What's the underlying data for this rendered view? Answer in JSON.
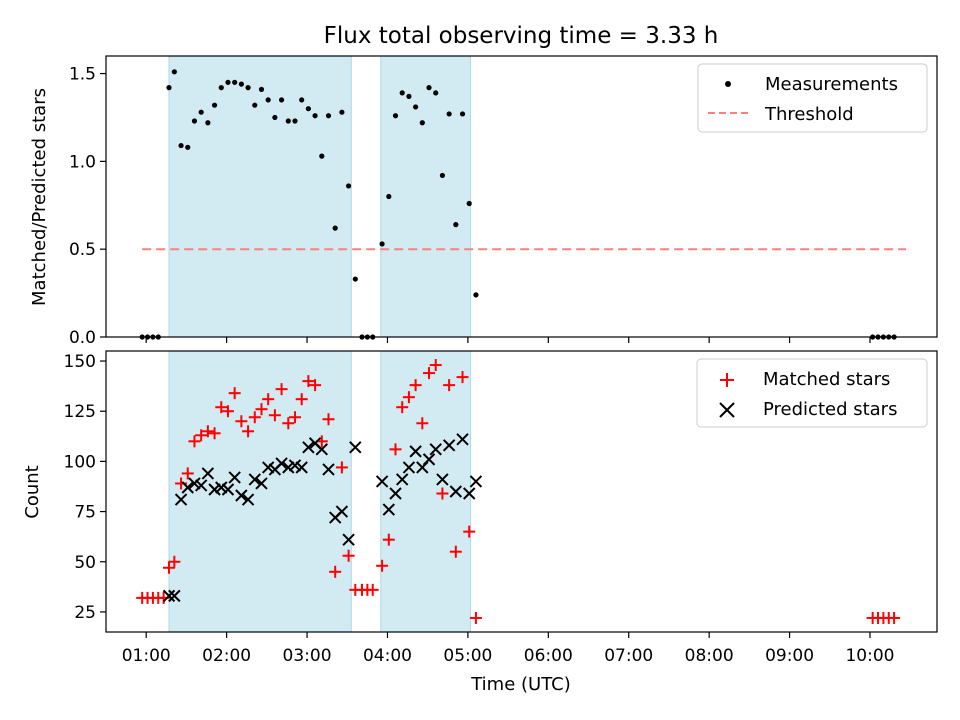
{
  "title": "Flux total observing time = 3.33 h",
  "colors": {
    "shade": "#add8e6",
    "measure": "#000000",
    "threshold": "#ff7f7f",
    "matched": "#ff0000",
    "predicted": "#000000"
  },
  "chart_data": [
    {
      "type": "scatter",
      "panel": "top",
      "ylabel": "Matched/Predicted stars",
      "ylim": [
        0,
        1.6
      ],
      "yticks": [
        0.0,
        0.5,
        1.0,
        1.5
      ],
      "shaded_intervals": [
        [
          "01:17",
          "03:33"
        ],
        [
          "03:55",
          "05:02"
        ]
      ],
      "threshold": {
        "name": "Threshold",
        "y": 0.5,
        "x_range": [
          "00:57",
          "10:27"
        ]
      },
      "legend": [
        "Measurements",
        "Threshold"
      ],
      "series": [
        {
          "name": "Measurements",
          "points": [
            [
              "00:57",
              0
            ],
            [
              "01:01",
              0
            ],
            [
              "01:05",
              0
            ],
            [
              "01:09",
              0
            ],
            [
              "01:17",
              1.42
            ],
            [
              "01:21",
              1.51
            ],
            [
              "01:26",
              1.09
            ],
            [
              "01:31",
              1.08
            ],
            [
              "01:36",
              1.23
            ],
            [
              "01:41",
              1.28
            ],
            [
              "01:46",
              1.22
            ],
            [
              "01:51",
              1.32
            ],
            [
              "01:56",
              1.42
            ],
            [
              "02:01",
              1.45
            ],
            [
              "02:06",
              1.45
            ],
            [
              "02:11",
              1.44
            ],
            [
              "02:16",
              1.42
            ],
            [
              "02:21",
              1.32
            ],
            [
              "02:26",
              1.41
            ],
            [
              "02:31",
              1.35
            ],
            [
              "02:36",
              1.25
            ],
            [
              "02:41",
              1.35
            ],
            [
              "02:46",
              1.23
            ],
            [
              "02:51",
              1.23
            ],
            [
              "02:56",
              1.35
            ],
            [
              "03:01",
              1.3
            ],
            [
              "03:06",
              1.26
            ],
            [
              "03:11",
              1.03
            ],
            [
              "03:16",
              1.26
            ],
            [
              "03:21",
              0.62
            ],
            [
              "03:26",
              1.28
            ],
            [
              "03:31",
              0.86
            ],
            [
              "03:36",
              0.33
            ],
            [
              "03:41",
              0
            ],
            [
              "03:45",
              0
            ],
            [
              "03:49",
              0
            ],
            [
              "03:56",
              0.53
            ],
            [
              "04:01",
              0.8
            ],
            [
              "04:06",
              1.26
            ],
            [
              "04:11",
              1.39
            ],
            [
              "04:16",
              1.37
            ],
            [
              "04:21",
              1.31
            ],
            [
              "04:26",
              1.22
            ],
            [
              "04:31",
              1.42
            ],
            [
              "04:36",
              1.39
            ],
            [
              "04:41",
              0.92
            ],
            [
              "04:46",
              1.27
            ],
            [
              "04:51",
              0.64
            ],
            [
              "04:56",
              1.27
            ],
            [
              "05:01",
              0.76
            ],
            [
              "05:06",
              0.24
            ],
            [
              "10:02",
              0
            ],
            [
              "10:06",
              0
            ],
            [
              "10:10",
              0
            ],
            [
              "10:14",
              0
            ],
            [
              "10:18",
              0
            ]
          ]
        }
      ]
    },
    {
      "type": "scatter",
      "panel": "bottom",
      "xlabel": "Time (UTC)",
      "ylabel": "Count",
      "ylim": [
        15,
        155
      ],
      "yticks": [
        25,
        50,
        75,
        100,
        125,
        150
      ],
      "xticks": [
        "01:00",
        "02:00",
        "03:00",
        "04:00",
        "05:00",
        "06:00",
        "07:00",
        "08:00",
        "09:00",
        "10:00"
      ],
      "xlim": [
        "00:30",
        "10:50"
      ],
      "shaded_intervals": [
        [
          "01:17",
          "03:33"
        ],
        [
          "03:55",
          "05:02"
        ]
      ],
      "legend": [
        "Matched stars",
        "Predicted stars"
      ],
      "series": [
        {
          "name": "Matched stars",
          "points": [
            [
              "00:57",
              32
            ],
            [
              "01:01",
              32
            ],
            [
              "01:05",
              32
            ],
            [
              "01:09",
              32
            ],
            [
              "01:13",
              32
            ],
            [
              "01:17",
              47
            ],
            [
              "01:21",
              50
            ],
            [
              "01:26",
              89
            ],
            [
              "01:31",
              94
            ],
            [
              "01:36",
              110
            ],
            [
              "01:41",
              113
            ],
            [
              "01:46",
              115
            ],
            [
              "01:51",
              114
            ],
            [
              "01:56",
              127
            ],
            [
              "02:01",
              125
            ],
            [
              "02:06",
              134
            ],
            [
              "02:11",
              120
            ],
            [
              "02:16",
              115
            ],
            [
              "02:21",
              122
            ],
            [
              "02:26",
              126
            ],
            [
              "02:31",
              131
            ],
            [
              "02:36",
              123
            ],
            [
              "02:41",
              136
            ],
            [
              "02:46",
              119
            ],
            [
              "02:51",
              122
            ],
            [
              "02:56",
              131
            ],
            [
              "03:01",
              140
            ],
            [
              "03:06",
              138
            ],
            [
              "03:11",
              110
            ],
            [
              "03:16",
              121
            ],
            [
              "03:21",
              45
            ],
            [
              "03:26",
              97
            ],
            [
              "03:31",
              53
            ],
            [
              "03:36",
              36
            ],
            [
              "03:41",
              36
            ],
            [
              "03:45",
              36
            ],
            [
              "03:49",
              36
            ],
            [
              "03:56",
              48
            ],
            [
              "04:01",
              61
            ],
            [
              "04:06",
              106
            ],
            [
              "04:11",
              127
            ],
            [
              "04:16",
              132
            ],
            [
              "04:21",
              138
            ],
            [
              "04:26",
              119
            ],
            [
              "04:31",
              144
            ],
            [
              "04:36",
              148
            ],
            [
              "04:41",
              84
            ],
            [
              "04:46",
              138
            ],
            [
              "04:51",
              55
            ],
            [
              "04:56",
              142
            ],
            [
              "05:01",
              65
            ],
            [
              "05:06",
              22
            ],
            [
              "10:02",
              22
            ],
            [
              "10:06",
              22
            ],
            [
              "10:10",
              22
            ],
            [
              "10:14",
              22
            ],
            [
              "10:18",
              22
            ]
          ]
        },
        {
          "name": "Predicted stars",
          "points": [
            [
              "01:17",
              33
            ],
            [
              "01:21",
              33
            ],
            [
              "01:26",
              81
            ],
            [
              "01:31",
              87
            ],
            [
              "01:36",
              89
            ],
            [
              "01:41",
              88
            ],
            [
              "01:46",
              94
            ],
            [
              "01:51",
              86
            ],
            [
              "01:56",
              87
            ],
            [
              "02:01",
              86
            ],
            [
              "02:06",
              92
            ],
            [
              "02:11",
              83
            ],
            [
              "02:16",
              81
            ],
            [
              "02:21",
              91
            ],
            [
              "02:26",
              89
            ],
            [
              "02:31",
              97
            ],
            [
              "02:36",
              96
            ],
            [
              "02:41",
              99
            ],
            [
              "02:46",
              97
            ],
            [
              "02:51",
              98
            ],
            [
              "02:56",
              97
            ],
            [
              "03:01",
              107
            ],
            [
              "03:06",
              109
            ],
            [
              "03:11",
              106
            ],
            [
              "03:16",
              96
            ],
            [
              "03:21",
              72
            ],
            [
              "03:26",
              75
            ],
            [
              "03:31",
              61
            ],
            [
              "03:36",
              107
            ],
            [
              "03:56",
              90
            ],
            [
              "04:01",
              76
            ],
            [
              "04:06",
              84
            ],
            [
              "04:11",
              91
            ],
            [
              "04:16",
              97
            ],
            [
              "04:21",
              105
            ],
            [
              "04:26",
              97
            ],
            [
              "04:31",
              101
            ],
            [
              "04:36",
              106
            ],
            [
              "04:41",
              91
            ],
            [
              "04:46",
              108
            ],
            [
              "04:51",
              85
            ],
            [
              "04:56",
              111
            ],
            [
              "05:01",
              84
            ],
            [
              "05:06",
              90
            ]
          ]
        }
      ]
    }
  ]
}
